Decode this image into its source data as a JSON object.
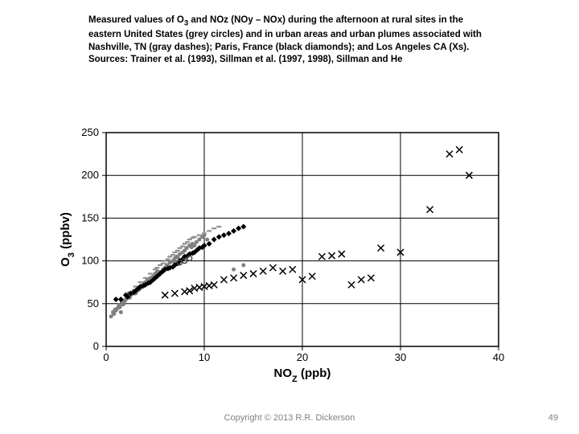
{
  "caption_line1": "Measured values of O",
  "caption_sub": "3",
  "caption_line1b": " and NOz (NOy – NOx) during the afternoon at rural sites in the eastern United States (grey circles) and in urban areas and urban plumes associated with Nashville, TN (gray dashes); Paris, France (black diamonds); and Los Angeles CA (Xs).",
  "caption_line2": "Sources: Trainer et al. (1993), Sillman et al. (1997, 1998), Sillman and He",
  "copyright": "Copyright © 2013  R.R. Dickerson",
  "slide_number": "49",
  "chart": {
    "type": "scatter",
    "xlabel": "NO",
    "xlabel_sub": "Z",
    "xlabel_unit": " (ppb)",
    "ylabel": "O",
    "ylabel_sub": "3",
    "ylabel_unit": " (ppbv)",
    "xlim": [
      0,
      40
    ],
    "ylim": [
      0,
      250
    ],
    "xticks": [
      0,
      10,
      20,
      30,
      40
    ],
    "yticks": [
      0,
      50,
      100,
      150,
      200,
      250
    ],
    "background_color": "#ffffff",
    "border_color": "#000000",
    "grid_color": "#000000",
    "label_fontsize": 15,
    "tick_fontsize": 13,
    "colors": {
      "grey_circle": "#808080",
      "gray_dash": "#909090",
      "black_diamond": "#000000",
      "x_marker": "#000000",
      "o_marker": "#404040"
    },
    "series": {
      "grey_circles": [
        [
          0.5,
          35
        ],
        [
          0.8,
          38
        ],
        [
          1,
          42
        ],
        [
          1.2,
          45
        ],
        [
          1.5,
          40
        ],
        [
          1.3,
          48
        ],
        [
          1.6,
          52
        ],
        [
          1.8,
          50
        ],
        [
          2,
          55
        ],
        [
          2.2,
          58
        ],
        [
          2.5,
          60
        ],
        [
          2.3,
          62
        ],
        [
          2.8,
          65
        ],
        [
          3,
          62
        ],
        [
          3.2,
          68
        ],
        [
          3.5,
          70
        ],
        [
          3.3,
          66
        ],
        [
          3.8,
          72
        ],
        [
          4,
          75
        ],
        [
          4.2,
          78
        ],
        [
          4.5,
          80
        ],
        [
          4.3,
          76
        ],
        [
          4.8,
          82
        ],
        [
          5,
          85
        ],
        [
          5.2,
          88
        ],
        [
          5.5,
          87
        ],
        [
          5.3,
          83
        ],
        [
          5.8,
          90
        ],
        [
          6,
          92
        ],
        [
          6.2,
          95
        ],
        [
          6.5,
          98
        ],
        [
          6.8,
          100
        ],
        [
          7,
          103
        ],
        [
          7.2,
          105
        ],
        [
          6.9,
          99
        ],
        [
          7.5,
          108
        ],
        [
          7.3,
          104
        ],
        [
          7.8,
          110
        ],
        [
          8,
          112
        ],
        [
          8.2,
          115
        ],
        [
          8.5,
          118
        ],
        [
          8.8,
          120
        ],
        [
          9,
          118
        ],
        [
          8.7,
          116
        ],
        [
          9.2,
          122
        ],
        [
          9.5,
          125
        ],
        [
          9.8,
          128
        ],
        [
          10,
          130
        ],
        [
          10.3,
          125
        ],
        [
          1.1,
          44
        ],
        [
          1.7,
          49
        ],
        [
          2.4,
          57
        ],
        [
          3.1,
          64
        ],
        [
          3.6,
          69
        ],
        [
          4.1,
          73
        ],
        [
          4.6,
          79
        ],
        [
          5.4,
          86
        ],
        [
          0.7,
          40
        ],
        [
          0.9,
          43
        ],
        [
          1.4,
          46
        ],
        [
          1.9,
          53
        ],
        [
          2.1,
          56
        ],
        [
          2.6,
          61
        ],
        [
          2.9,
          63
        ],
        [
          3.4,
          67
        ],
        [
          3.7,
          71
        ],
        [
          3.9,
          74
        ],
        [
          13,
          90
        ],
        [
          14,
          95
        ]
      ],
      "gray_dashes": [
        [
          3,
          70
        ],
        [
          3.5,
          75
        ],
        [
          4,
          80
        ],
        [
          4.5,
          85
        ],
        [
          5,
          90
        ],
        [
          5.5,
          95
        ],
        [
          6,
          100
        ],
        [
          6.5,
          105
        ],
        [
          7,
          110
        ],
        [
          7.5,
          115
        ],
        [
          8,
          120
        ],
        [
          8.5,
          125
        ],
        [
          9,
          128
        ],
        [
          9.5,
          130
        ],
        [
          10,
          132
        ],
        [
          10.5,
          135
        ],
        [
          11,
          138
        ],
        [
          11.5,
          140
        ],
        [
          5.2,
          92
        ],
        [
          5.8,
          97
        ],
        [
          6.3,
          102
        ],
        [
          6.8,
          107
        ],
        [
          7.3,
          112
        ],
        [
          7.8,
          117
        ],
        [
          8.3,
          122
        ],
        [
          8.8,
          127
        ]
      ],
      "black_diamonds": [
        [
          1,
          55
        ],
        [
          1.5,
          55
        ],
        [
          2,
          60
        ],
        [
          2.5,
          62
        ],
        [
          3,
          65
        ],
        [
          3.5,
          70
        ],
        [
          4,
          72
        ],
        [
          4.5,
          75
        ],
        [
          5,
          80
        ],
        [
          5.5,
          85
        ],
        [
          6,
          90
        ],
        [
          6.5,
          92
        ],
        [
          7,
          95
        ],
        [
          7.5,
          100
        ],
        [
          8,
          105
        ],
        [
          8.5,
          108
        ],
        [
          9,
          110
        ],
        [
          9.5,
          115
        ],
        [
          10,
          118
        ],
        [
          10.5,
          120
        ],
        [
          11,
          125
        ],
        [
          11.5,
          128
        ],
        [
          12,
          130
        ],
        [
          12.5,
          132
        ],
        [
          13,
          135
        ],
        [
          13.5,
          138
        ],
        [
          14,
          140
        ],
        [
          5.2,
          82
        ],
        [
          5.8,
          88
        ],
        [
          6.3,
          91
        ],
        [
          6.8,
          93
        ],
        [
          7.3,
          97
        ],
        [
          7.8,
          102
        ],
        [
          8.3,
          106
        ],
        [
          8.8,
          109
        ],
        [
          9.3,
          113
        ],
        [
          9.8,
          116
        ],
        [
          2.2,
          58
        ],
        [
          2.8,
          63
        ],
        [
          3.3,
          68
        ],
        [
          3.8,
          71
        ],
        [
          4.3,
          74
        ],
        [
          4.8,
          78
        ]
      ],
      "x_markers": [
        [
          6,
          60
        ],
        [
          7,
          62
        ],
        [
          8,
          64
        ],
        [
          9,
          68
        ],
        [
          10,
          70
        ],
        [
          11,
          72
        ],
        [
          12,
          78
        ],
        [
          13,
          80
        ],
        [
          15,
          85
        ],
        [
          16,
          88
        ],
        [
          17,
          92
        ],
        [
          18,
          88
        ],
        [
          19,
          90
        ],
        [
          20,
          78
        ],
        [
          21,
          82
        ],
        [
          22,
          105
        ],
        [
          24,
          108
        ],
        [
          25,
          72
        ],
        [
          26,
          78
        ],
        [
          28,
          115
        ],
        [
          30,
          110
        ],
        [
          33,
          160
        ],
        [
          35,
          225
        ],
        [
          36,
          230
        ],
        [
          37,
          200
        ],
        [
          8.5,
          65
        ],
        [
          9.5,
          69
        ],
        [
          10.5,
          71
        ],
        [
          14,
          83
        ],
        [
          23,
          106
        ],
        [
          27,
          80
        ]
      ],
      "o_markers": [
        [
          7.5,
          98
        ],
        [
          8,
          100
        ],
        [
          8.5,
          103
        ]
      ]
    }
  }
}
